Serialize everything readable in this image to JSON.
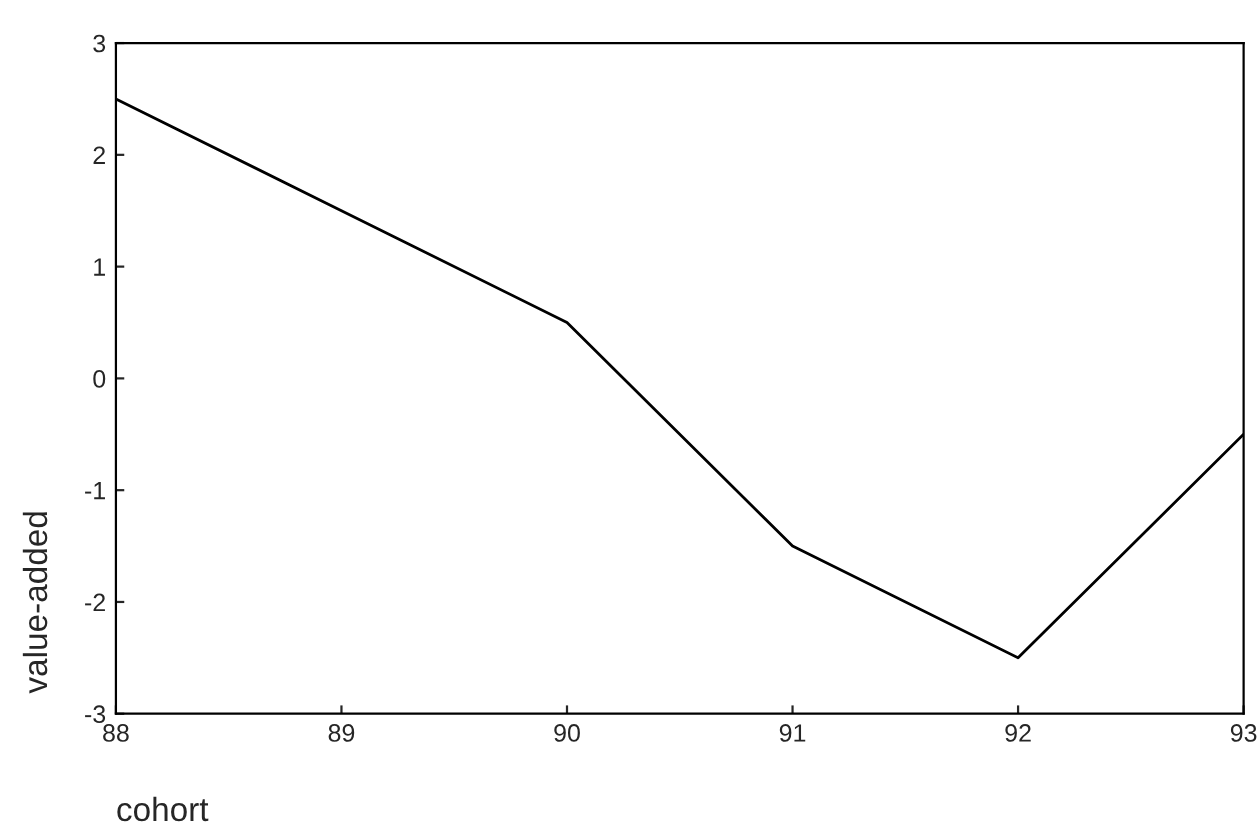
{
  "chart_data": {
    "type": "line",
    "xlabel": "cohort",
    "ylabel": "value-added",
    "x": [
      88,
      89,
      90,
      91,
      92,
      93
    ],
    "series": [
      {
        "color": "#000000",
        "values": [
          2.5,
          1.5,
          0.5,
          -1.5,
          -2.5,
          -0.5
        ]
      }
    ],
    "xlim": [
      88,
      93
    ],
    "xticks": [
      88,
      89,
      90,
      91,
      92,
      93
    ],
    "ylim": [
      -3,
      3
    ],
    "yticks": [
      -3,
      -2,
      -1,
      0,
      1,
      2,
      3
    ],
    "grid": false
  }
}
